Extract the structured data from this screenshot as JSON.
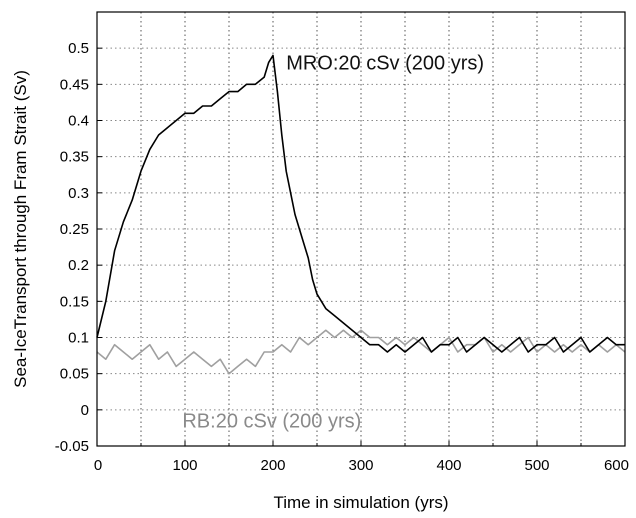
{
  "chart_data": {
    "type": "line",
    "xlabel": "Time in simulation (yrs)",
    "ylabel": "Sea-IceTransport through Fram Strait (Sv)",
    "xlim": [
      0,
      600
    ],
    "ylim": [
      -0.05,
      0.55
    ],
    "x_ticks": [
      "0",
      "100",
      "200",
      "300",
      "400",
      "500",
      "600"
    ],
    "y_ticks": [
      "-0.05",
      "0",
      "0.05",
      "0.1",
      "0.15",
      "0.2",
      "0.25",
      "0.3",
      "0.35",
      "0.4",
      "0.45",
      "0.5"
    ],
    "grid": true,
    "series": [
      {
        "name": "MRO:20 cSv (200 yrs)",
        "color": "#000000",
        "x": [
          0,
          10,
          20,
          30,
          40,
          50,
          60,
          70,
          80,
          90,
          100,
          110,
          120,
          130,
          140,
          150,
          160,
          170,
          180,
          190,
          195,
          200,
          205,
          210,
          215,
          220,
          225,
          230,
          235,
          240,
          245,
          250,
          260,
          270,
          280,
          290,
          300,
          310,
          320,
          330,
          340,
          350,
          360,
          370,
          380,
          390,
          400,
          410,
          420,
          430,
          440,
          450,
          460,
          470,
          480,
          490,
          500,
          510,
          520,
          530,
          540,
          550,
          560,
          570,
          580,
          590,
          600
        ],
        "values": [
          0.1,
          0.15,
          0.22,
          0.26,
          0.29,
          0.33,
          0.36,
          0.38,
          0.39,
          0.4,
          0.41,
          0.41,
          0.42,
          0.42,
          0.43,
          0.44,
          0.44,
          0.45,
          0.45,
          0.46,
          0.48,
          0.49,
          0.44,
          0.38,
          0.33,
          0.3,
          0.27,
          0.25,
          0.23,
          0.21,
          0.18,
          0.16,
          0.14,
          0.13,
          0.12,
          0.11,
          0.1,
          0.09,
          0.09,
          0.08,
          0.09,
          0.08,
          0.09,
          0.1,
          0.08,
          0.09,
          0.09,
          0.1,
          0.08,
          0.09,
          0.1,
          0.09,
          0.08,
          0.09,
          0.1,
          0.08,
          0.09,
          0.09,
          0.1,
          0.08,
          0.09,
          0.1,
          0.08,
          0.09,
          0.1,
          0.09,
          0.09
        ]
      },
      {
        "name": "RB:20 cSv (200 yrs)",
        "color": "#a0a0a0",
        "x": [
          0,
          10,
          20,
          30,
          40,
          50,
          60,
          70,
          80,
          90,
          100,
          110,
          120,
          130,
          140,
          150,
          160,
          170,
          180,
          190,
          200,
          210,
          220,
          230,
          240,
          250,
          260,
          270,
          280,
          290,
          300,
          310,
          320,
          330,
          340,
          350,
          360,
          370,
          380,
          390,
          400,
          410,
          420,
          430,
          440,
          450,
          460,
          470,
          480,
          490,
          500,
          510,
          520,
          530,
          540,
          550,
          560,
          570,
          580,
          590,
          600
        ],
        "values": [
          0.08,
          0.07,
          0.09,
          0.08,
          0.07,
          0.08,
          0.09,
          0.07,
          0.08,
          0.06,
          0.07,
          0.08,
          0.07,
          0.06,
          0.07,
          0.05,
          0.06,
          0.07,
          0.06,
          0.08,
          0.08,
          0.09,
          0.08,
          0.1,
          0.09,
          0.1,
          0.11,
          0.1,
          0.11,
          0.1,
          0.11,
          0.1,
          0.1,
          0.09,
          0.1,
          0.09,
          0.1,
          0.09,
          0.08,
          0.09,
          0.1,
          0.08,
          0.09,
          0.09,
          0.1,
          0.08,
          0.09,
          0.08,
          0.09,
          0.1,
          0.08,
          0.09,
          0.08,
          0.09,
          0.08,
          0.09,
          0.08,
          0.09,
          0.08,
          0.09,
          0.08
        ]
      }
    ]
  }
}
